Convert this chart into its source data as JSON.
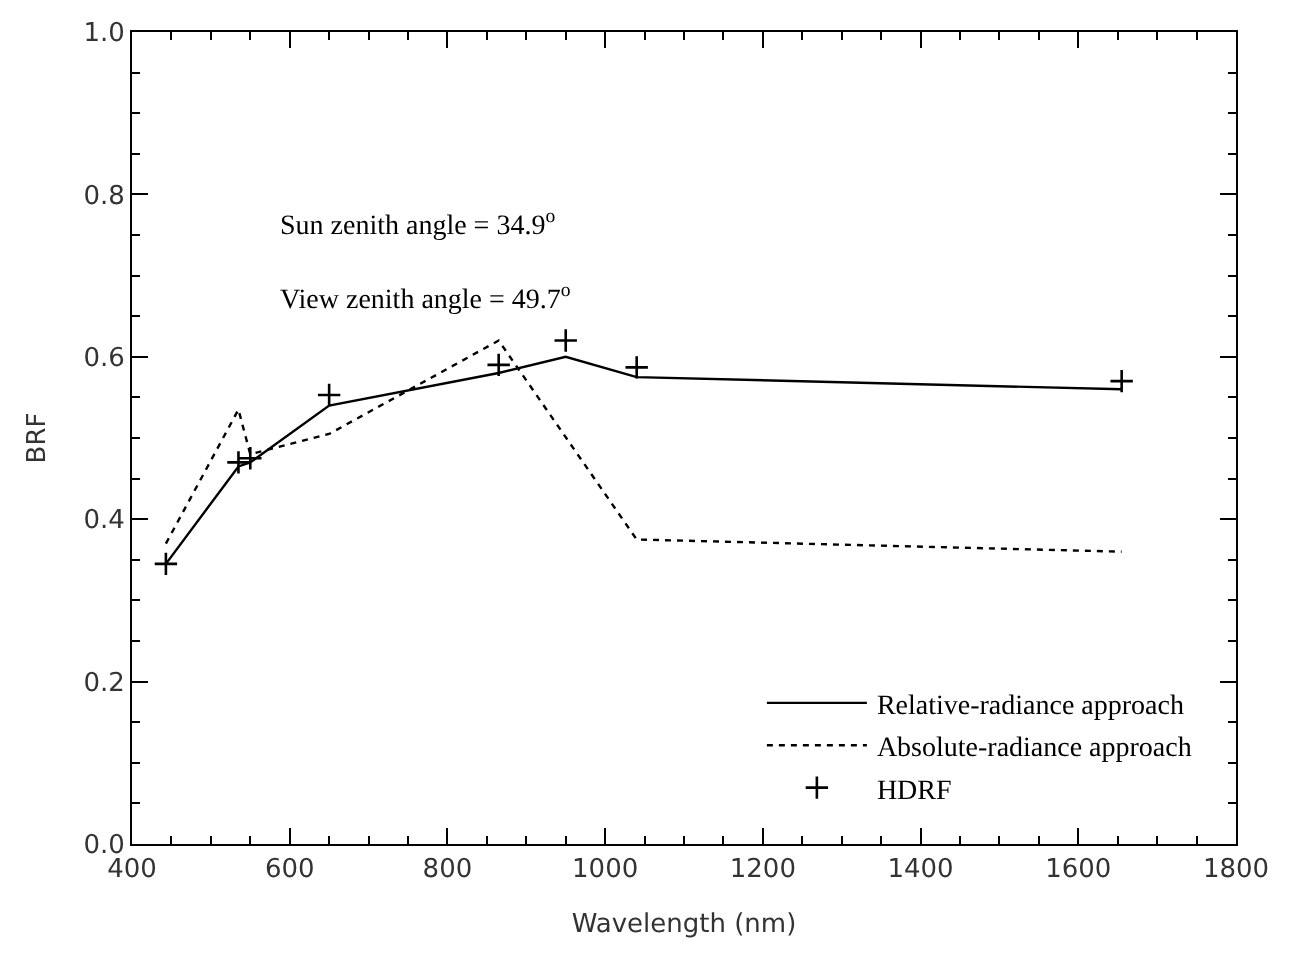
{
  "chart_data": {
    "type": "line",
    "xlabel": "Wavelength (nm)",
    "ylabel": "BRF",
    "x": [
      443,
      535,
      550,
      650,
      865,
      950,
      1040,
      1655
    ],
    "series": [
      {
        "name": "Relative-radiance approach",
        "color": "#000000",
        "line_style": "solid",
        "marker": "none",
        "values": [
          0.345,
          0.465,
          0.47,
          0.54,
          0.58,
          0.6,
          0.575,
          0.56
        ]
      },
      {
        "name": "Absolute-radiance approach",
        "color": "#000000",
        "line_style": "dotted",
        "marker": "none",
        "x": [
          443,
          535,
          550,
          650,
          865,
          1040,
          1655
        ],
        "values": [
          0.37,
          0.535,
          0.48,
          0.505,
          0.62,
          0.375,
          0.36
        ]
      },
      {
        "name": "HDRF",
        "color": "#000000",
        "type": "scatter",
        "marker": "cross",
        "values": [
          0.345,
          0.47,
          0.475,
          0.553,
          0.59,
          0.62,
          0.587,
          0.57
        ]
      }
    ],
    "xlim": [
      400,
      1800
    ],
    "xticks": [
      400,
      600,
      800,
      1000,
      1200,
      1400,
      1600,
      1800
    ],
    "ylim": [
      0,
      1
    ],
    "yticks": [
      {
        "value": 0,
        "label": "0.0"
      },
      {
        "value": 0.2,
        "label": "0.2"
      },
      {
        "value": 0.4,
        "label": "0.4"
      },
      {
        "value": 0.6,
        "label": "0.6"
      },
      {
        "value": 0.8,
        "label": "0.8"
      },
      {
        "value": 1,
        "label": "1.0"
      }
    ],
    "legend": "bottom right",
    "annotations": [
      "Sun zenith angle = 34.9$^{o}$",
      "View zenith angle = 49.7$^{o}$"
    ]
  }
}
